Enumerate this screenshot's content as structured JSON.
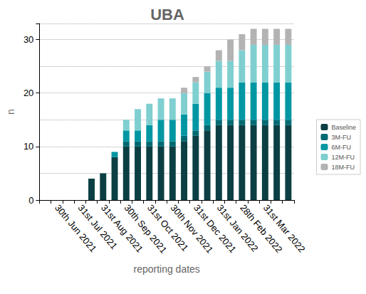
{
  "chart_data": {
    "type": "bar",
    "title": "UBA",
    "stacked": true,
    "x_label": "reporting dates",
    "y_label": "n",
    "categories": [
      null,
      "30th Jun 2021",
      null,
      "31st Jul 2021",
      null,
      "31st Aug 2021",
      null,
      "30th Sep 2021",
      null,
      "31st Oct 2021",
      null,
      "30th Nov 2021",
      null,
      "31st Dec 2021",
      null,
      "31st Jan 2022",
      null,
      "28th Feb 2022",
      null,
      "31st Mar 2022",
      null,
      null
    ],
    "series": [
      {
        "name": "Baseline",
        "color": "#0b3f44",
        "values": [
          null,
          null,
          null,
          null,
          4,
          5,
          8,
          10,
          10,
          10,
          10,
          10,
          11,
          12,
          13,
          14,
          14,
          14,
          14,
          14,
          14,
          14
        ]
      },
      {
        "name": "3M-FU",
        "color": "#006a73",
        "values": [
          null,
          null,
          null,
          null,
          0,
          0,
          0,
          1,
          1,
          1,
          1,
          1,
          1,
          1,
          1,
          1,
          1,
          1,
          1,
          1,
          1,
          1
        ]
      },
      {
        "name": "6M-FU",
        "color": "#0097a3",
        "values": [
          null,
          null,
          null,
          null,
          0,
          0,
          1,
          2,
          2,
          3,
          4,
          4,
          4,
          5,
          6,
          6,
          6,
          7,
          7,
          7,
          7,
          7
        ]
      },
      {
        "name": "12M-FU",
        "color": "#7fcfd0",
        "values": [
          null,
          null,
          null,
          null,
          0,
          0,
          0,
          2,
          4,
          4,
          4,
          4,
          4,
          4,
          4,
          5,
          5,
          6,
          7,
          7,
          7,
          7
        ]
      },
      {
        "name": "18M-FU",
        "color": "#b3b3b3",
        "values": [
          null,
          null,
          null,
          null,
          0,
          0,
          0,
          0,
          0,
          0,
          0,
          0,
          1,
          1,
          1,
          2,
          4,
          3,
          3,
          3,
          3,
          3
        ]
      }
    ],
    "ylim": [
      0,
      33
    ],
    "yticks": [
      0,
      10,
      20,
      30
    ],
    "grid": true,
    "legend": "right"
  }
}
